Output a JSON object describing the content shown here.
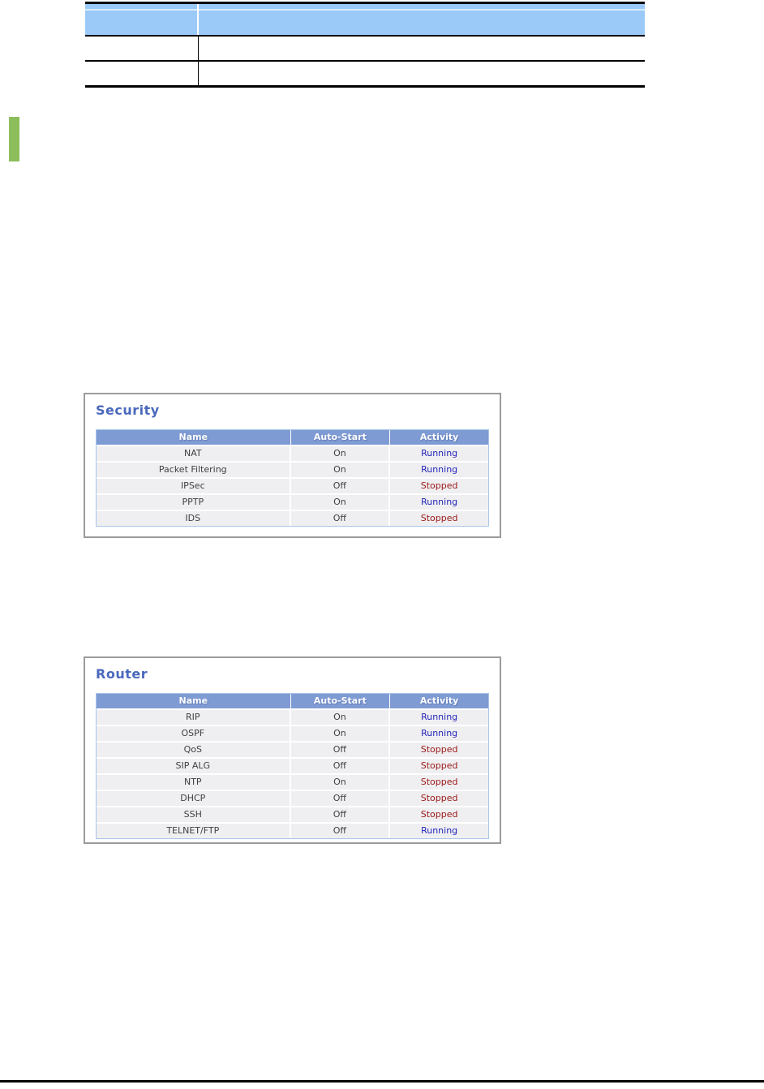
{
  "top_table": {
    "note": "table continuation cut off at page top, no visible text",
    "column_count": 2,
    "row_count": 2
  },
  "colors": {
    "top_table_header_bg": "#9bcaf8",
    "section_marker_green": "#8cbe5b",
    "panel_title_blue": "#4a69bd",
    "table_header_bg": "#7f9bd4",
    "row_bg": "#efeff1",
    "running_text": "#2424b8",
    "stopped_text": "#9b1717",
    "panel_border_gray": "#9b9b9b",
    "table_border_blue": "#a8c6e8"
  },
  "panels": [
    {
      "title": "Security",
      "columns": [
        "Name",
        "Auto-Start",
        "Activity"
      ],
      "rows": [
        {
          "name": "NAT",
          "auto_start": "On",
          "activity": "Running"
        },
        {
          "name": "Packet Filtering",
          "auto_start": "On",
          "activity": "Running"
        },
        {
          "name": "IPSec",
          "auto_start": "Off",
          "activity": "Stopped"
        },
        {
          "name": "PPTP",
          "auto_start": "On",
          "activity": "Running"
        },
        {
          "name": "IDS",
          "auto_start": "Off",
          "activity": "Stopped"
        }
      ]
    },
    {
      "title": "Router",
      "columns": [
        "Name",
        "Auto-Start",
        "Activity"
      ],
      "rows": [
        {
          "name": "RIP",
          "auto_start": "On",
          "activity": "Running"
        },
        {
          "name": "OSPF",
          "auto_start": "On",
          "activity": "Running"
        },
        {
          "name": "QoS",
          "auto_start": "Off",
          "activity": "Stopped"
        },
        {
          "name": "SIP ALG",
          "auto_start": "Off",
          "activity": "Stopped"
        },
        {
          "name": "NTP",
          "auto_start": "On",
          "activity": "Stopped"
        },
        {
          "name": "DHCP",
          "auto_start": "Off",
          "activity": "Stopped"
        },
        {
          "name": "SSH",
          "auto_start": "Off",
          "activity": "Stopped"
        },
        {
          "name": "TELNET/FTP",
          "auto_start": "Off",
          "activity": "Running"
        }
      ]
    }
  ]
}
